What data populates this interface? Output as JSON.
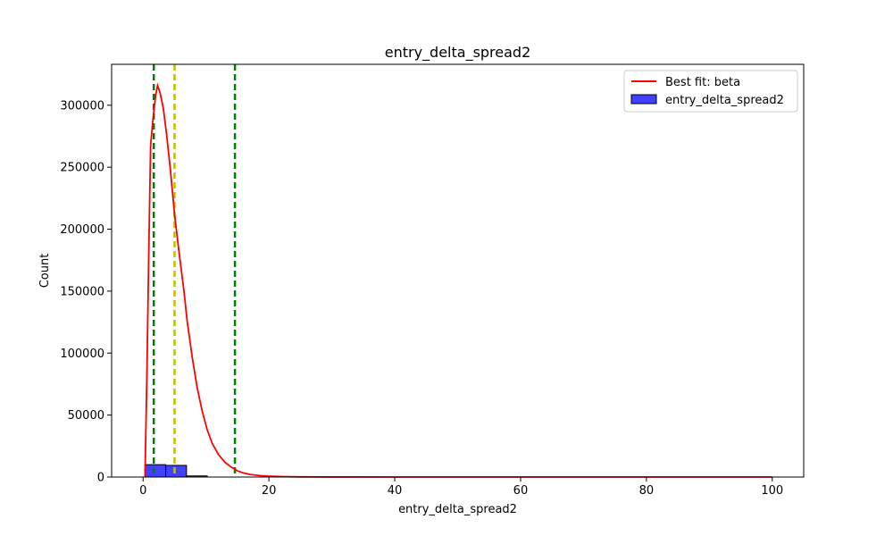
{
  "chart_data": {
    "type": "bar",
    "title": "entry_delta_spread2",
    "xlabel": "entry_delta_spread2",
    "ylabel": "Count",
    "xlim": [
      -5,
      105
    ],
    "ylim": [
      0,
      333000
    ],
    "x_ticks": [
      0,
      20,
      40,
      60,
      80,
      100
    ],
    "y_ticks": [
      0,
      50000,
      100000,
      150000,
      200000,
      250000,
      300000
    ],
    "x_tick_labels": [
      "0",
      "20",
      "40",
      "60",
      "80",
      "100"
    ],
    "y_tick_labels": [
      "0",
      "50000",
      "100000",
      "150000",
      "200000",
      "250000",
      "300000"
    ],
    "grid": false,
    "legend_position": "top-right",
    "histogram": {
      "name": "entry_delta_spread2",
      "color": "#0000ff",
      "bin_edges": [
        0.3,
        3.6,
        6.9,
        10.2
      ],
      "counts": [
        10000,
        9400,
        900
      ]
    },
    "fit_curve": {
      "name": "Best fit: beta",
      "color": "#ff0000",
      "x": [
        0.3,
        0.6,
        0.9,
        1.2,
        1.6,
        2.0,
        2.3,
        2.7,
        3.2,
        3.7,
        4.3,
        5.0,
        5.7,
        6.5,
        7.0,
        7.8,
        8.6,
        9.4,
        10.2,
        11.0,
        12.0,
        13.0,
        14.0,
        15.0,
        16.0,
        17.0,
        18.5,
        20.0,
        22.0,
        25.0,
        30.0,
        40.0,
        60.0,
        80.0,
        100.0
      ],
      "y": [
        0,
        80000,
        180000,
        268000,
        290000,
        308000,
        316000,
        310000,
        298000,
        278000,
        250000,
        212000,
        182000,
        150000,
        126000,
        97000,
        72000,
        53000,
        38000,
        27000,
        18000,
        12000,
        8000,
        5000,
        3200,
        2100,
        1200,
        700,
        350,
        150,
        60,
        20,
        5,
        2,
        0
      ]
    },
    "vlines": [
      {
        "x": 1.7,
        "color": "#008000"
      },
      {
        "x": 5.0,
        "color": "#bfbf00"
      },
      {
        "x": 14.6,
        "color": "#008000"
      }
    ]
  }
}
